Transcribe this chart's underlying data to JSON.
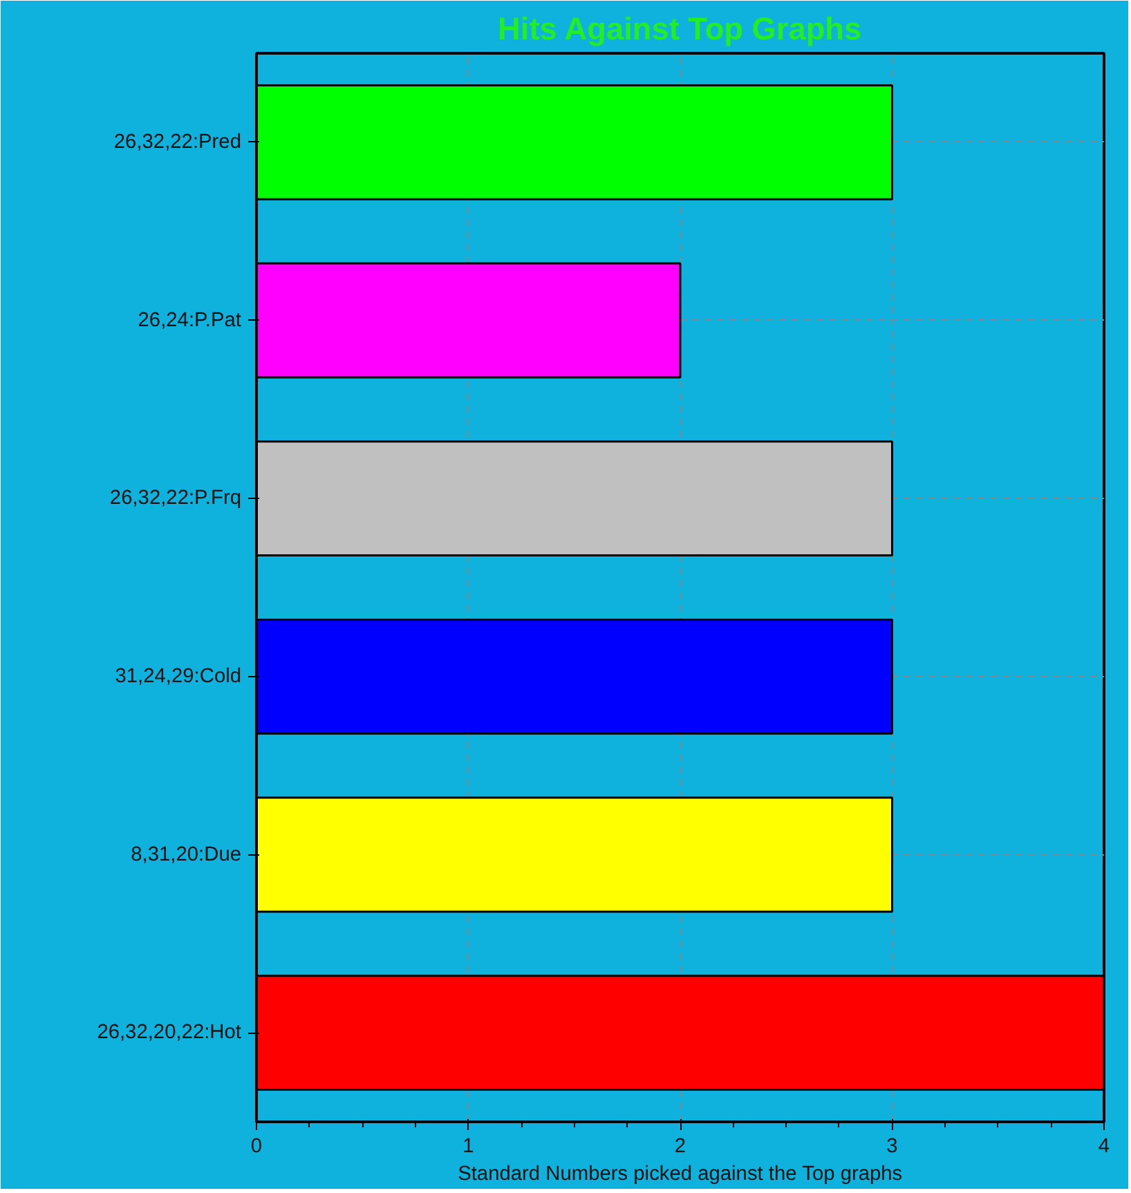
{
  "chart_data": {
    "type": "bar",
    "orientation": "horizontal",
    "title": "Hits Against Top Graphs",
    "xlabel": "Standard Numbers picked against the Top graphs",
    "categories": [
      "26,32,22:Pred",
      "26,24:P.Pat",
      "26,32,22:P.Frq",
      "31,24,29:Cold",
      "8,31,20:Due",
      "26,32,20,22:Hot"
    ],
    "values": [
      3,
      2,
      3,
      3,
      3,
      4
    ],
    "colors": [
      "#00ff00",
      "#ff00ff",
      "#c0c0c0",
      "#0000ff",
      "#ffff00",
      "#ff0000"
    ],
    "xlim": [
      0,
      4
    ],
    "xticks": [
      0,
      1,
      2,
      3,
      4
    ],
    "grid": true
  }
}
